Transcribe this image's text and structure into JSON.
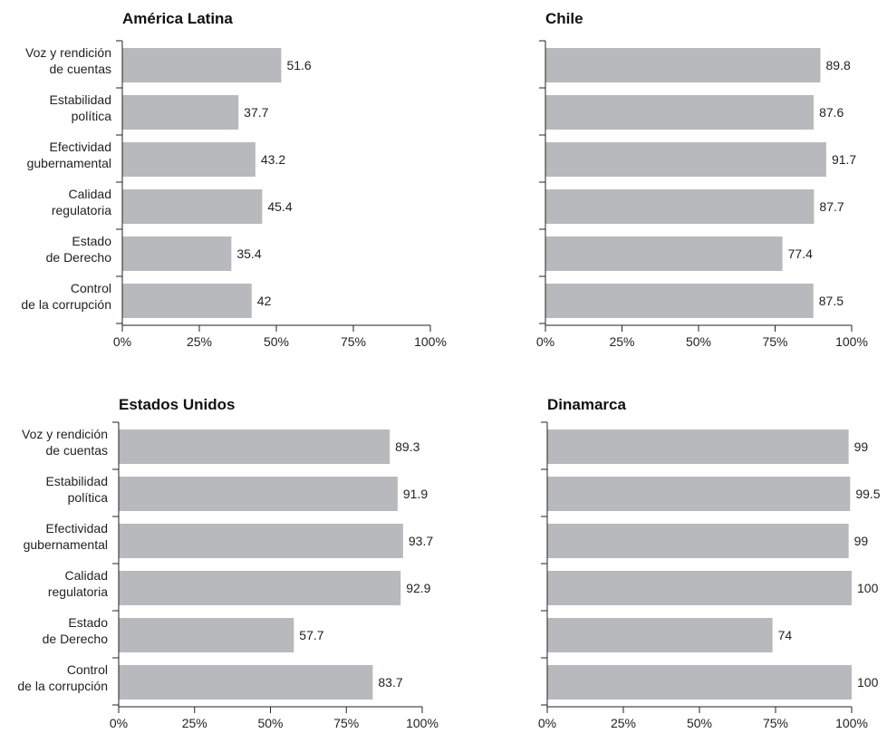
{
  "chart_data": [
    {
      "type": "bar",
      "title": "América Latina",
      "categories": [
        "Voz y rendición|de cuentas",
        "Estabilidad|política",
        "Efectividad|gubernamental",
        "Calidad|regulatoria",
        "Estado|de Derecho",
        "Control|de la corrupción"
      ],
      "values": [
        51.6,
        37.7,
        43.2,
        45.4,
        35.4,
        42
      ],
      "value_labels": [
        "51.6",
        "37.7",
        "43.2",
        "45.4",
        "35.4",
        "42"
      ],
      "xlim": [
        0,
        100
      ],
      "xticks": [
        "0%",
        "25%",
        "50%",
        "75%",
        "100%"
      ],
      "show_category_labels": true,
      "bar_color": "#b8b9bd",
      "grid": false
    },
    {
      "type": "bar",
      "title": "Chile",
      "categories": [
        "Voz y rendición|de cuentas",
        "Estabilidad|política",
        "Efectividad|gubernamental",
        "Calidad|regulatoria",
        "Estado|de Derecho",
        "Control|de la corrupción"
      ],
      "values": [
        89.8,
        87.6,
        91.7,
        87.7,
        77.4,
        87.5
      ],
      "value_labels": [
        "89.8",
        "87.6",
        "91.7",
        "87.7",
        "77.4",
        "87.5"
      ],
      "xlim": [
        0,
        100
      ],
      "xticks": [
        "0%",
        "25%",
        "50%",
        "75%",
        "100%"
      ],
      "show_category_labels": false,
      "bar_color": "#b8b9bd",
      "grid": false
    },
    {
      "type": "bar",
      "title": "Estados Unidos",
      "categories": [
        "Voz y rendición|de cuentas",
        "Estabilidad|política",
        "Efectividad|gubernamental",
        "Calidad|regulatoria",
        "Estado|de Derecho",
        "Control|de la corrupción"
      ],
      "values": [
        89.3,
        91.9,
        93.7,
        92.9,
        57.7,
        83.7
      ],
      "value_labels": [
        "89.3",
        "91.9",
        "93.7",
        "92.9",
        "57.7",
        "83.7"
      ],
      "xlim": [
        0,
        100
      ],
      "xticks": [
        "0%",
        "25%",
        "50%",
        "75%",
        "100%"
      ],
      "show_category_labels": true,
      "bar_color": "#b8b9bd",
      "grid": false
    },
    {
      "type": "bar",
      "title": "Dinamarca",
      "categories": [
        "Voz y rendición|de cuentas",
        "Estabilidad|política",
        "Efectividad|gubernamental",
        "Calidad|regulatoria",
        "Estado|de Derecho",
        "Control|de la corrupción"
      ],
      "values": [
        99,
        99.5,
        99,
        100,
        74,
        100
      ],
      "value_labels": [
        "99",
        "99.5",
        "99",
        "100",
        "74",
        "100"
      ],
      "xlim": [
        0,
        100
      ],
      "xticks": [
        "0%",
        "25%",
        "50%",
        "75%",
        "100%"
      ],
      "show_category_labels": false,
      "bar_color": "#b8b9bd",
      "grid": false
    }
  ]
}
